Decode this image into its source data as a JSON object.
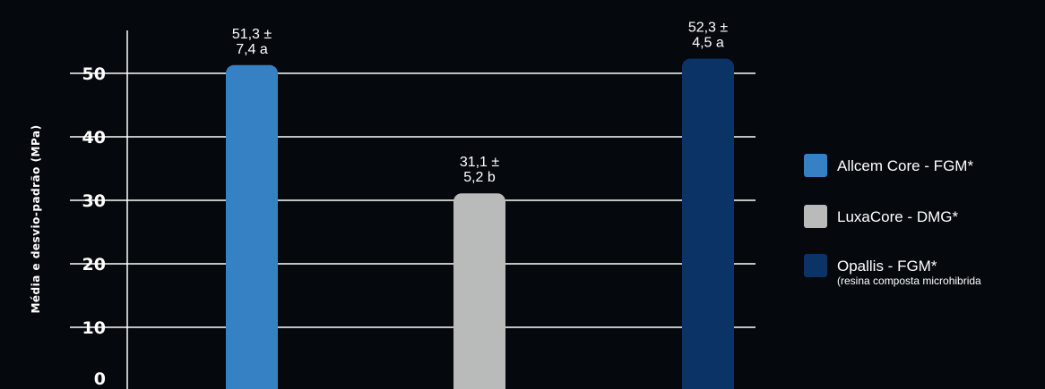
{
  "chart_data": {
    "type": "bar",
    "ylabel": "Média e desvio-padrão (MPa)",
    "ylim": [
      0,
      50
    ],
    "yticks": [
      "0",
      "10",
      "20",
      "30",
      "40",
      "50"
    ],
    "grid": true,
    "legend_position": "right",
    "series": [
      {
        "name": "Allcem Core - FGM*",
        "value": 51.3,
        "label_lines": [
          "51,3 ±",
          "7,4 a"
        ],
        "color": "#3680c4"
      },
      {
        "name": "LuxaCore - DMG*",
        "value": 31.1,
        "label_lines": [
          "31,1 ±",
          "5,2 b"
        ],
        "color": "#b9bbbb"
      },
      {
        "name": "Opallis - FGM*",
        "note": "(resina composta microhibrida",
        "value": 52.3,
        "label_lines": [
          "52,3 ±",
          "4,5 a"
        ],
        "color": "#0c3366"
      }
    ]
  },
  "colors": {
    "background": "#05080d",
    "gridline": "#ffffff",
    "text": "#ffffff"
  }
}
